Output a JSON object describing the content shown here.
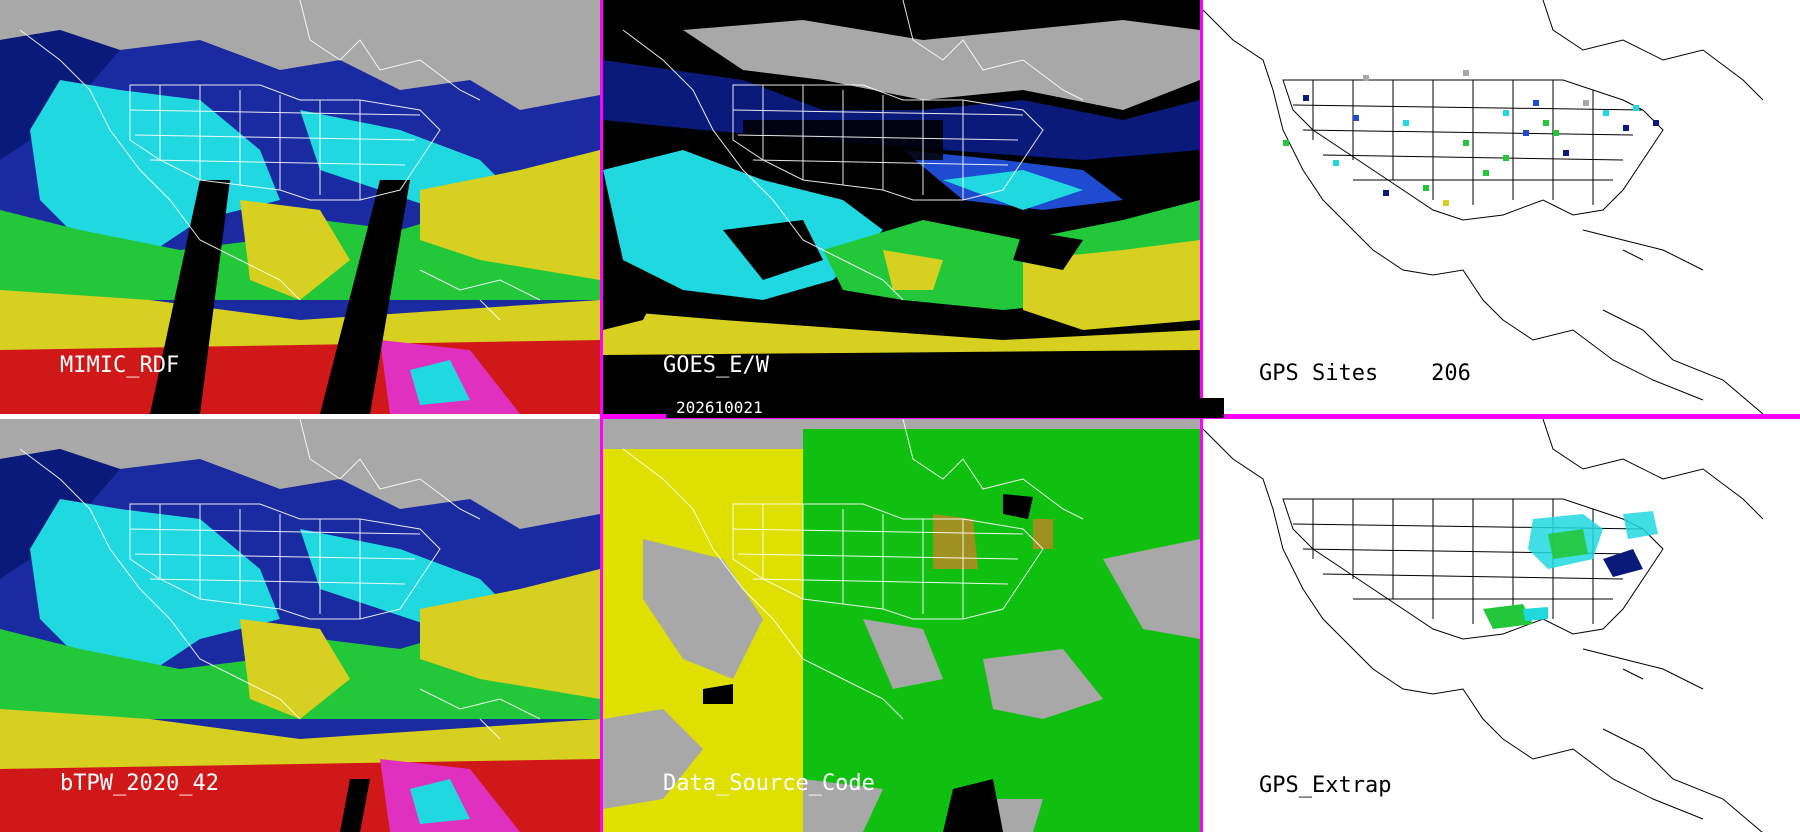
{
  "panels": {
    "mimic": {
      "label": "MIMIC_RDF"
    },
    "goes": {
      "label": "GOES_E/W",
      "timestamp": "202610021"
    },
    "gps_sites": {
      "label": "GPS Sites    206"
    },
    "btpw": {
      "label": "bTPW_2020_42"
    },
    "data_source": {
      "label": "Data_Source_Code"
    },
    "gps_extrap": {
      "label": "GPS_Extrap"
    }
  },
  "colors": {
    "divider": "#ff00ff",
    "tpw_gray": "#9a9a9a",
    "tpw_navy": "#0a1a7a",
    "tpw_blue": "#1e4bd0",
    "tpw_cyan": "#20d8e0",
    "tpw_green": "#22c83a",
    "tpw_yellow": "#d8d020",
    "tpw_red": "#d01818",
    "source_gray": "#a8a8a8",
    "source_yellow": "#e0e000",
    "source_green": "#10c010",
    "source_olive": "#a09020"
  }
}
